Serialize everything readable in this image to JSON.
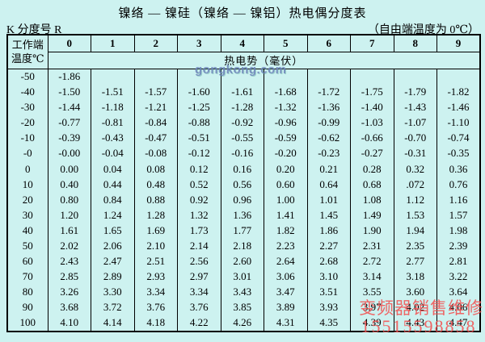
{
  "page": {
    "title": "镍络 — 镍硅（镍络 — 镍铝）热电偶分度表",
    "subtitle_left": "K 分度号 R",
    "subtitle_right": "（自由端温度为 0℃）"
  },
  "table": {
    "corner_header_line1": "工作端",
    "corner_header_line2": "温度℃",
    "col_headers": [
      "0",
      "1",
      "2",
      "3",
      "4",
      "5",
      "6",
      "7",
      "8",
      "9"
    ],
    "span_header": "热电势（毫伏）",
    "rows": [
      {
        "temp": "-50",
        "values": [
          "-1.86",
          "",
          "",
          "",
          "",
          "",
          "",
          "",
          "",
          ""
        ]
      },
      {
        "temp": "-40",
        "values": [
          "-1.50",
          "-1.51",
          "-1.57",
          "-1.60",
          "-1.61",
          "-1.68",
          "-1.72",
          "-1.75",
          "-1.79",
          "-1.82"
        ]
      },
      {
        "temp": "-30",
        "values": [
          "-1.44",
          "-1.18",
          "-1.21",
          "-1.25",
          "-1.28",
          "-1.32",
          "-1.36",
          "-1.40",
          "-1.43",
          "-1.46"
        ]
      },
      {
        "temp": "-20",
        "values": [
          "-0.77",
          "-0.81",
          "-0.84",
          "-0.88",
          "-0.92",
          "-0.96",
          "-0.99",
          "-1.03",
          "-1.07",
          "-1.10"
        ]
      },
      {
        "temp": "-10",
        "values": [
          "-0.39",
          "-0.43",
          "-0.47",
          "-0.51",
          "-0.55",
          "-0.59",
          "-0.62",
          "-0.66",
          "-0.70",
          "-0.74"
        ]
      },
      {
        "temp": "-0",
        "values": [
          "-0.00",
          "-0.04",
          "-0.08",
          "-0.12",
          "-0.16",
          "-0.20",
          "-0.23",
          "-0.27",
          "-0.31",
          "-0.35"
        ]
      },
      {
        "temp": "0",
        "values": [
          "0.00",
          "0.04",
          "0.08",
          "0.12",
          "0.16",
          "0.20",
          "0.21",
          "0.28",
          "0.32",
          "0.36"
        ]
      },
      {
        "temp": "10",
        "values": [
          "0.40",
          "0.44",
          "0.48",
          "0.52",
          "0.56",
          "0.60",
          "0.64",
          "0.68",
          ".072",
          "0.76"
        ]
      },
      {
        "temp": "20",
        "values": [
          "0.80",
          "0.84",
          "0.88",
          "0.92",
          "0.96",
          "1.00",
          "1.01",
          "1.08",
          "1.12",
          "1.16"
        ]
      },
      {
        "temp": "30",
        "values": [
          "1.20",
          "1.24",
          "1.28",
          "1.32",
          "1.36",
          "1.41",
          "1.45",
          "1.49",
          "1.53",
          "1.57"
        ]
      },
      {
        "temp": "40",
        "values": [
          "1.61",
          "1.65",
          "1.69",
          "1.73",
          "1.77",
          "1.82",
          "1.86",
          "1.90",
          "1.94",
          "1.98"
        ]
      },
      {
        "temp": "50",
        "values": [
          "2.02",
          "2.06",
          "2.10",
          "2.14",
          "2.18",
          "2.23",
          "2.27",
          "2.31",
          "2.35",
          "2.39"
        ]
      },
      {
        "temp": "60",
        "values": [
          "2.43",
          "2.47",
          "2.51",
          "2.56",
          "2.60",
          "2.64",
          "2.68",
          "2.72",
          "2.77",
          "2.81"
        ]
      },
      {
        "temp": "70",
        "values": [
          "2.85",
          "2.89",
          "2.93",
          "2.97",
          "3.01",
          "3.06",
          "3.10",
          "3.14",
          "3.18",
          "3.22"
        ]
      },
      {
        "temp": "80",
        "values": [
          "3.26",
          "3.30",
          "3.34",
          "3.34",
          "3.43",
          "3.47",
          "3.51",
          "3.55",
          "3.60",
          "3.64"
        ]
      },
      {
        "temp": "90",
        "values": [
          "3.68",
          "3.72",
          "3.76",
          "3.76",
          "3.85",
          "3.89",
          "3.93",
          "3.97",
          "4.02",
          "4.06"
        ]
      },
      {
        "temp": "100",
        "values": [
          "4.10",
          "4.14",
          "4.18",
          "4.22",
          "4.26",
          "4.31",
          "4.35",
          "4.39",
          "4.43",
          "4.47"
        ]
      }
    ]
  },
  "watermarks": {
    "gongkong": "gongkong.com",
    "seller_line1": "变频器销售维修",
    "seller_line2": "15515598858"
  },
  "colors": {
    "background": "#cdf2f0",
    "border": "#000000",
    "text": "#000000",
    "gongkong_watermark": "#6c80b9",
    "seller_watermark": "#f25252"
  }
}
